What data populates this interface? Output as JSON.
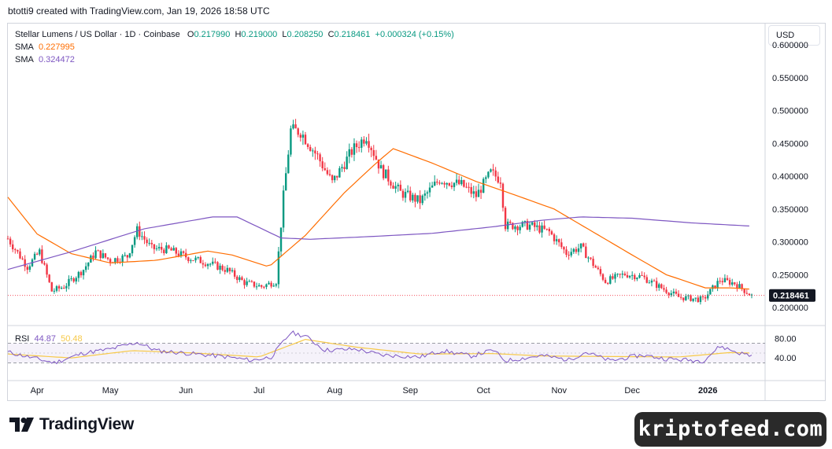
{
  "header": {
    "attribution": "btotti9 created with TradingView.com, Jan 19, 2026 18:58 UTC"
  },
  "legend": {
    "symbol": "Stellar Lumens / US Dollar · 1D · Coinbase",
    "open_label": "O",
    "open": "0.217990",
    "high_label": "H",
    "high": "0.219000",
    "low_label": "L",
    "low": "0.208250",
    "close_label": "C",
    "close": "0.218461",
    "change": "+0.000324 (+0.15%)",
    "sma1_label": "SMA",
    "sma1_value": "0.227995",
    "sma2_label": "SMA",
    "sma2_value": "0.324472"
  },
  "currency_button": "USD",
  "rsi": {
    "label": "RSI",
    "value": "44.87",
    "ma_value": "50.48"
  },
  "brand": {
    "name": "TradingView"
  },
  "watermark": "kriptofeed.com",
  "colors": {
    "up": "#089981",
    "down": "#f23645",
    "sma_fast": "#ff6d00",
    "sma_slow": "#7e57c2",
    "rsi_ma": "#f7c948",
    "last_price_bg": "#131722"
  },
  "chart_data": {
    "type": "candlestick",
    "y_ticks": [
      "0.600000",
      "0.550000",
      "0.500000",
      "0.450000",
      "0.400000",
      "0.350000",
      "0.300000",
      "0.250000",
      "0.200000"
    ],
    "ylim": [
      0.175,
      0.63
    ],
    "x_ticks": [
      "Apr",
      "May",
      "Jun",
      "Jul",
      "Aug",
      "Sep",
      "Oct",
      "Nov",
      "Dec",
      "2026"
    ],
    "last_price": "0.218461",
    "price_path": [
      [
        "2025-03-20",
        0.305
      ],
      [
        "2025-03-28",
        0.262
      ],
      [
        "2025-04-02",
        0.285
      ],
      [
        "2025-04-07",
        0.225
      ],
      [
        "2025-04-12",
        0.232
      ],
      [
        "2025-04-20",
        0.258
      ],
      [
        "2025-04-25",
        0.285
      ],
      [
        "2025-05-01",
        0.272
      ],
      [
        "2025-05-08",
        0.278
      ],
      [
        "2025-05-12",
        0.318
      ],
      [
        "2025-05-18",
        0.29
      ],
      [
        "2025-05-25",
        0.288
      ],
      [
        "2025-06-02",
        0.276
      ],
      [
        "2025-06-10",
        0.268
      ],
      [
        "2025-06-18",
        0.257
      ],
      [
        "2025-06-25",
        0.238
      ],
      [
        "2025-07-02",
        0.232
      ],
      [
        "2025-07-08",
        0.24
      ],
      [
        "2025-07-11",
        0.37
      ],
      [
        "2025-07-14",
        0.47
      ],
      [
        "2025-07-18",
        0.468
      ],
      [
        "2025-07-25",
        0.43
      ],
      [
        "2025-07-31",
        0.39
      ],
      [
        "2025-08-08",
        0.438
      ],
      [
        "2025-08-14",
        0.462
      ],
      [
        "2025-08-20",
        0.41
      ],
      [
        "2025-08-28",
        0.375
      ],
      [
        "2025-09-05",
        0.362
      ],
      [
        "2025-09-13",
        0.395
      ],
      [
        "2025-09-22",
        0.387
      ],
      [
        "2025-09-28",
        0.37
      ],
      [
        "2025-10-04",
        0.405
      ],
      [
        "2025-10-08",
        0.395
      ],
      [
        "2025-10-10",
        0.325
      ],
      [
        "2025-10-20",
        0.325
      ],
      [
        "2025-10-28",
        0.315
      ],
      [
        "2025-11-04",
        0.283
      ],
      [
        "2025-11-10",
        0.292
      ],
      [
        "2025-11-20",
        0.24
      ],
      [
        "2025-11-28",
        0.251
      ],
      [
        "2025-12-05",
        0.247
      ],
      [
        "2025-12-13",
        0.23
      ],
      [
        "2025-12-20",
        0.216
      ],
      [
        "2025-12-30",
        0.212
      ],
      [
        "2026-01-06",
        0.242
      ],
      [
        "2026-01-12",
        0.237
      ],
      [
        "2026-01-19",
        0.218
      ]
    ],
    "series": [
      {
        "name": "SMA",
        "color": "#ff6d00",
        "points": [
          [
            "2025-03-20",
            0.368
          ],
          [
            "2025-04-01",
            0.312
          ],
          [
            "2025-04-15",
            0.282
          ],
          [
            "2025-05-01",
            0.268
          ],
          [
            "2025-05-20",
            0.272
          ],
          [
            "2025-06-10",
            0.286
          ],
          [
            "2025-06-20",
            0.28
          ],
          [
            "2025-07-05",
            0.262
          ],
          [
            "2025-07-20",
            0.31
          ],
          [
            "2025-08-05",
            0.375
          ],
          [
            "2025-08-18",
            0.42
          ],
          [
            "2025-08-25",
            0.442
          ],
          [
            "2025-09-10",
            0.42
          ],
          [
            "2025-09-28",
            0.392
          ],
          [
            "2025-10-15",
            0.37
          ],
          [
            "2025-10-30",
            0.35
          ],
          [
            "2025-11-15",
            0.315
          ],
          [
            "2025-12-01",
            0.28
          ],
          [
            "2025-12-15",
            0.25
          ],
          [
            "2025-12-31",
            0.23
          ],
          [
            "2026-01-10",
            0.23
          ],
          [
            "2026-01-19",
            0.228
          ]
        ]
      },
      {
        "name": "SMA",
        "color": "#7e57c2",
        "points": [
          [
            "2025-03-20",
            0.258
          ],
          [
            "2025-04-15",
            0.285
          ],
          [
            "2025-05-15",
            0.32
          ],
          [
            "2025-06-12",
            0.338
          ],
          [
            "2025-06-22",
            0.338
          ],
          [
            "2025-07-10",
            0.306
          ],
          [
            "2025-07-22",
            0.304
          ],
          [
            "2025-08-15",
            0.308
          ],
          [
            "2025-09-10",
            0.313
          ],
          [
            "2025-10-05",
            0.323
          ],
          [
            "2025-10-25",
            0.333
          ],
          [
            "2025-11-10",
            0.338
          ],
          [
            "2025-12-01",
            0.336
          ],
          [
            "2025-12-25",
            0.329
          ],
          [
            "2026-01-19",
            0.324
          ]
        ]
      }
    ],
    "rsi_ticks": [
      "80.00",
      "40.00"
    ],
    "rsi_bands": [
      70,
      30
    ],
    "rsi_mid": 50,
    "rsi_path": [
      [
        "2025-03-20",
        52
      ],
      [
        "2025-04-01",
        38
      ],
      [
        "2025-04-08",
        30
      ],
      [
        "2025-04-20",
        50
      ],
      [
        "2025-05-01",
        58
      ],
      [
        "2025-05-12",
        72
      ],
      [
        "2025-05-20",
        55
      ],
      [
        "2025-06-05",
        48
      ],
      [
        "2025-06-18",
        42
      ],
      [
        "2025-06-28",
        35
      ],
      [
        "2025-07-06",
        42
      ],
      [
        "2025-07-14",
        92
      ],
      [
        "2025-07-20",
        85
      ],
      [
        "2025-07-28",
        56
      ],
      [
        "2025-08-10",
        58
      ],
      [
        "2025-08-20",
        46
      ],
      [
        "2025-09-05",
        42
      ],
      [
        "2025-09-14",
        55
      ],
      [
        "2025-09-26",
        44
      ],
      [
        "2025-10-05",
        56
      ],
      [
        "2025-10-10",
        34
      ],
      [
        "2025-10-25",
        45
      ],
      [
        "2025-11-05",
        36
      ],
      [
        "2025-11-12",
        52
      ],
      [
        "2025-11-22",
        34
      ],
      [
        "2025-12-05",
        46
      ],
      [
        "2025-12-15",
        38
      ],
      [
        "2025-12-30",
        34
      ],
      [
        "2026-01-06",
        64
      ],
      [
        "2026-01-14",
        50
      ],
      [
        "2026-01-19",
        45
      ]
    ],
    "rsi_ma_path": [
      [
        "2025-03-20",
        48
      ],
      [
        "2025-04-15",
        40
      ],
      [
        "2025-05-10",
        55
      ],
      [
        "2025-06-05",
        50
      ],
      [
        "2025-07-01",
        42
      ],
      [
        "2025-07-20",
        78
      ],
      [
        "2025-08-10",
        62
      ],
      [
        "2025-09-05",
        48
      ],
      [
        "2025-10-05",
        49
      ],
      [
        "2025-10-25",
        44
      ],
      [
        "2025-11-20",
        43
      ],
      [
        "2025-12-20",
        42
      ],
      [
        "2026-01-10",
        51
      ],
      [
        "2026-01-19",
        50
      ]
    ]
  }
}
